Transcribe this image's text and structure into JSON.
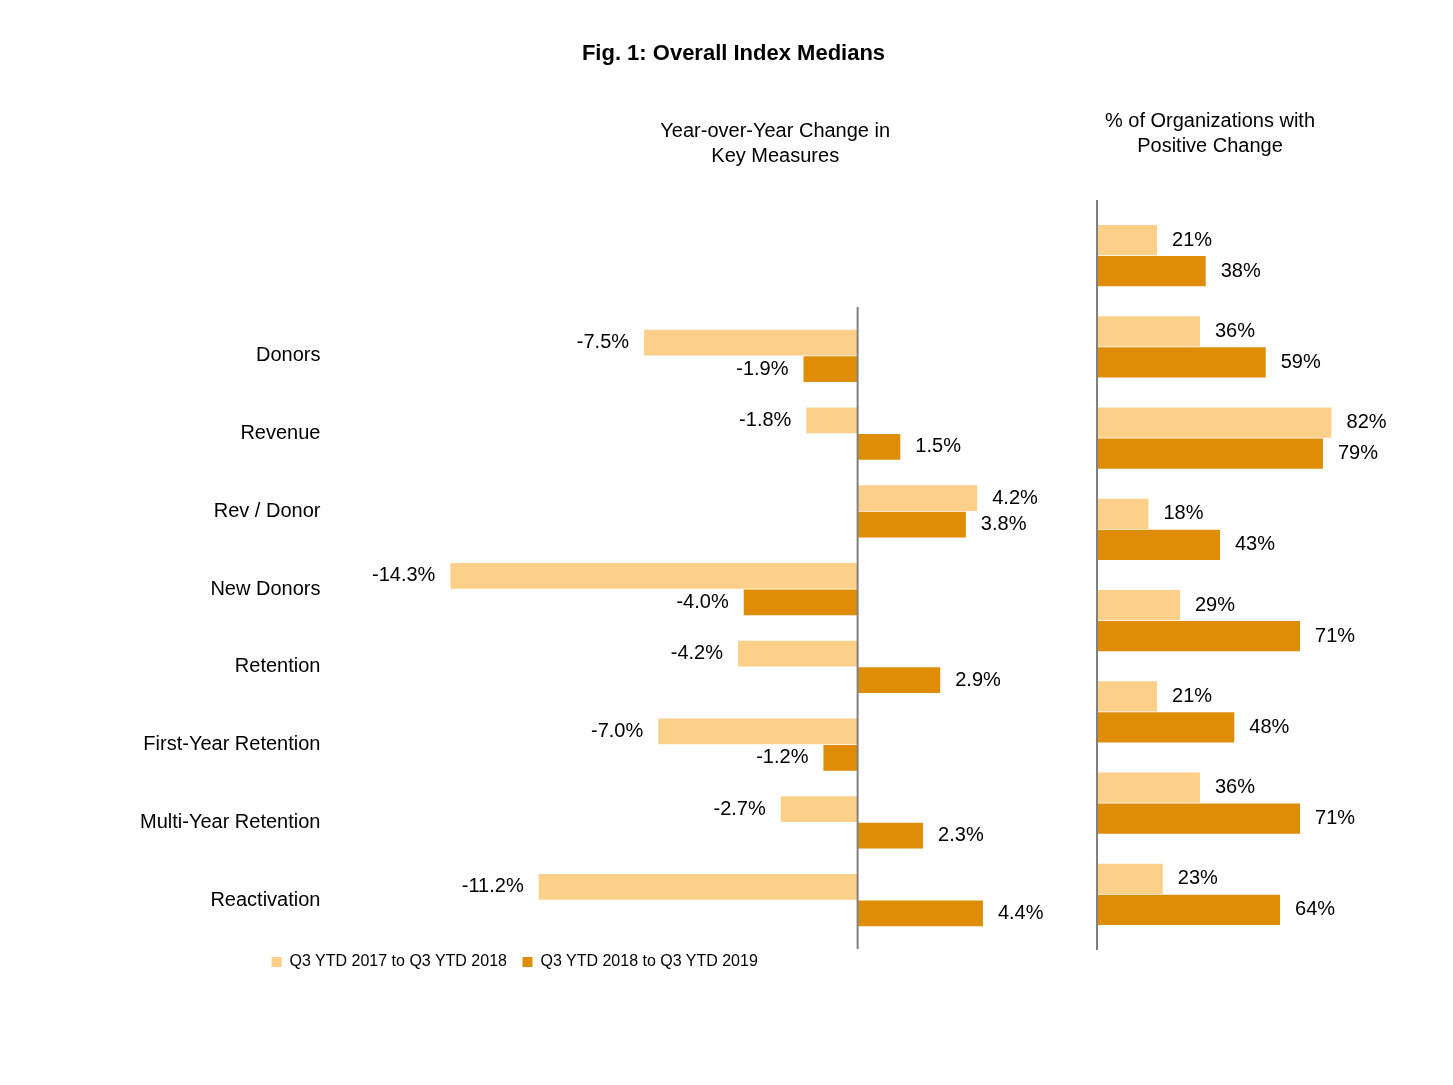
{
  "chart_data": [
    {
      "type": "bar",
      "orientation": "horizontal",
      "title": "Fig. 1: Overall Index Medians",
      "subtitle": "Year-over-Year Change in Key Measures",
      "categories": [
        "Donors",
        "Revenue",
        "Rev / Donor",
        "New Donors",
        "Retention",
        "First-Year Retention",
        "Multi-Year Retention",
        "Reactivation"
      ],
      "series": [
        {
          "name": "Q3 YTD 2017 to Q3 YTD 2018",
          "color": "#fdd08a",
          "values": [
            -7.5,
            -1.8,
            4.2,
            -14.3,
            -4.2,
            -7.0,
            -2.7,
            -11.2
          ],
          "value_labels": [
            "-7.5%",
            "-1.8%",
            "4.2%",
            "-14.3%",
            "-4.2%",
            "-7.0%",
            "-2.7%",
            "-11.2%"
          ]
        },
        {
          "name": "Q3 YTD 2018 to Q3 YTD 2019",
          "color": "#df8c06",
          "values": [
            -1.9,
            1.5,
            3.8,
            -4.0,
            2.9,
            -1.2,
            2.3,
            4.4
          ],
          "value_labels": [
            "-1.9%",
            "1.5%",
            "3.8%",
            "-4.0%",
            "2.9%",
            "-1.2%",
            "2.3%",
            "4.4%"
          ]
        }
      ],
      "tick_labels": "y",
      "grid": false,
      "legend": "bottom"
    },
    {
      "type": "bar",
      "orientation": "horizontal",
      "subtitle": "% of Organizations with Positive Change",
      "categories": [
        null,
        null,
        null,
        null,
        null,
        null,
        null,
        null
      ],
      "series": [
        {
          "color": "#fdd08a",
          "values": [
            21,
            36,
            82,
            18,
            29,
            21,
            36,
            23
          ],
          "value_labels": [
            "21%",
            "36%",
            "82%",
            "18%",
            "29%",
            "21%",
            "36%",
            "23%"
          ]
        },
        {
          "color": "#df8c06",
          "values": [
            38,
            59,
            79,
            43,
            71,
            48,
            71,
            64
          ],
          "value_labels": [
            "38%",
            "59%",
            "79%",
            "43%",
            "71%",
            "48%",
            "71%",
            "64%"
          ]
        }
      ],
      "tick_labels": false,
      "grid": false,
      "legend": false
    }
  ]
}
